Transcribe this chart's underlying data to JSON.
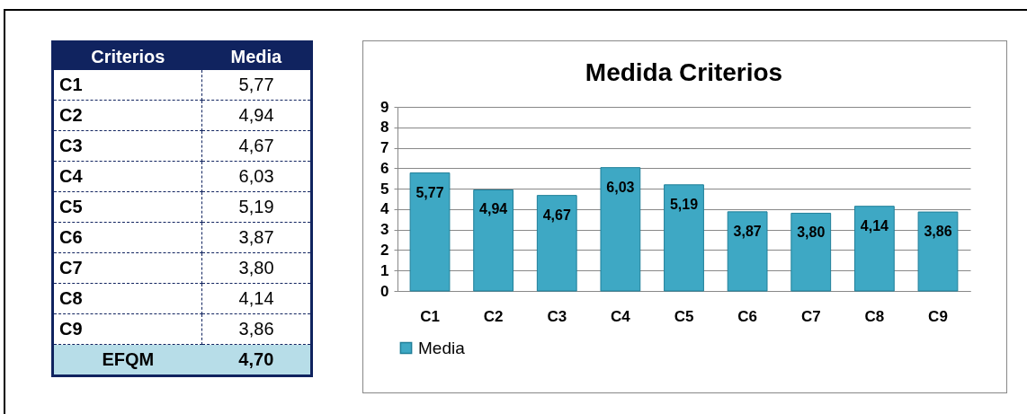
{
  "chart_data": {
    "type": "bar",
    "title": "Medida Criterios",
    "categories": [
      "C1",
      "C2",
      "C3",
      "C4",
      "C5",
      "C6",
      "C7",
      "C8",
      "C9"
    ],
    "series": [
      {
        "name": "Media",
        "color": "#3ea8c4",
        "values": [
          5.77,
          4.94,
          4.67,
          6.03,
          5.19,
          3.87,
          3.8,
          4.14,
          3.86
        ],
        "value_labels": [
          "5,77",
          "4,94",
          "4,67",
          "6,03",
          "5,19",
          "3,87",
          "3,80",
          "4,14",
          "3,86"
        ]
      }
    ],
    "ylim": [
      0,
      9
    ],
    "yticks": [
      0,
      1,
      2,
      3,
      4,
      5,
      6,
      7,
      8,
      9
    ],
    "grid": "y",
    "legend": "bottom",
    "annotations": [
      "Criterios",
      "Media",
      "EFQM",
      "4,70"
    ]
  }
}
